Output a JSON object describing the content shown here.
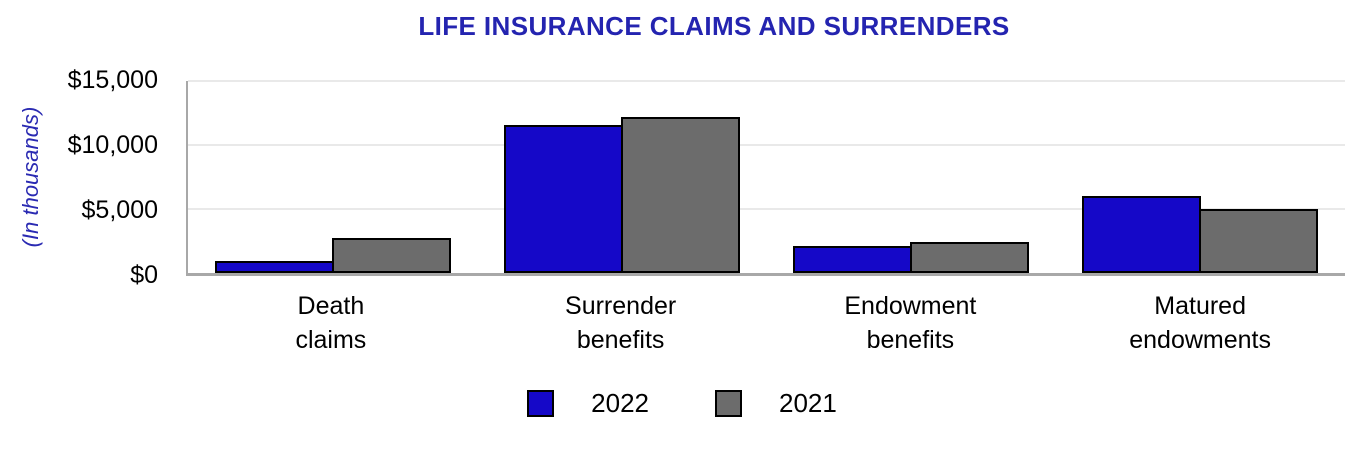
{
  "chart_data": {
    "type": "bar",
    "title": "LIFE INSURANCE CLAIMS AND SURRENDERS",
    "ylabel": "(In thousands)",
    "categories": [
      "Death claims",
      "Surrender benefits",
      "Endowment benefits",
      "Matured endowments"
    ],
    "series": [
      {
        "name": "2022",
        "color": "#1508C8",
        "values": [
          950,
          11600,
          2100,
          6000
        ]
      },
      {
        "name": "2021",
        "color": "#6C6C6C",
        "values": [
          2700,
          12200,
          2450,
          5000
        ]
      }
    ],
    "ylim": [
      0,
      15000
    ],
    "yticks": [
      0,
      5000,
      10000,
      15000
    ],
    "ytick_labels": [
      "$0",
      "$5,000",
      "$10,000",
      "$15,000"
    ],
    "grid": true,
    "legend_position": "bottom"
  },
  "colors": {
    "title_text": "#2424B0",
    "ylabel_text": "#2A2AB2",
    "axis_line": "#A8A8A8",
    "gridline": "#E9E9E9",
    "bar_border": "#000000",
    "tick_text": "#000000"
  }
}
